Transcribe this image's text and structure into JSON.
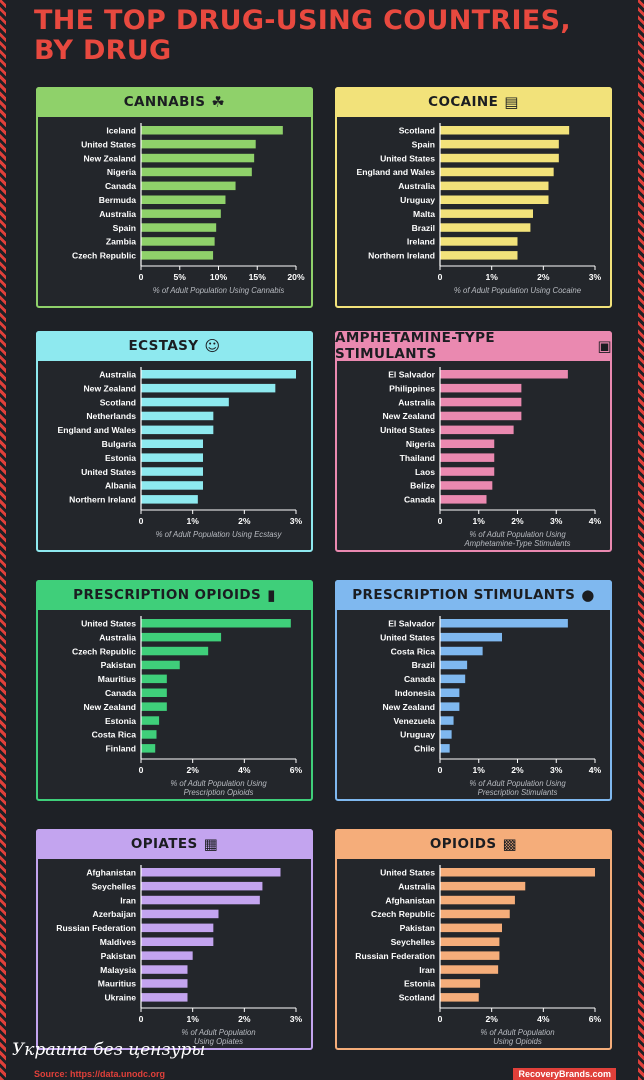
{
  "title_line1": "THE TOP DRUG-USING COUNTRIES,",
  "title_line2": "BY DRUG",
  "watermark": "Украина без цензуры",
  "source": "Source: https://data.unodc.org",
  "brand": "RecoveryBrands.com",
  "chart_data": [
    {
      "type": "bar",
      "title": "CANNABIS",
      "icon": "leaf-icon",
      "color": "#8fd16a",
      "categories": [
        "Iceland",
        "United States",
        "New Zealand",
        "Nigeria",
        "Canada",
        "Bermuda",
        "Australia",
        "Spain",
        "Zambia",
        "Czech Republic"
      ],
      "values": [
        18.3,
        14.8,
        14.6,
        14.3,
        12.2,
        10.9,
        10.3,
        9.7,
        9.5,
        9.3
      ],
      "xticks": [
        "0",
        "5%",
        "10%",
        "15%",
        "20%"
      ],
      "xlim": [
        0,
        20
      ],
      "xlabel": [
        "% of Adult Population Using Cannabis"
      ]
    },
    {
      "type": "bar",
      "title": "COCAINE",
      "icon": "cocaine-icon",
      "color": "#f2e27a",
      "categories": [
        "Scotland",
        "Spain",
        "United States",
        "England and Wales",
        "Australia",
        "Uruguay",
        "Malta",
        "Brazil",
        "Ireland",
        "Northern Ireland"
      ],
      "values": [
        2.5,
        2.3,
        2.3,
        2.2,
        2.1,
        2.1,
        1.8,
        1.75,
        1.5,
        1.5
      ],
      "xticks": [
        "0",
        "1%",
        "2%",
        "3%"
      ],
      "xlim": [
        0,
        3
      ],
      "xlabel": [
        "% of Adult Population Using Cocaine"
      ]
    },
    {
      "type": "bar",
      "title": "ECSTASY",
      "icon": "smiley-icon",
      "color": "#8ee9ef",
      "categories": [
        "Australia",
        "New Zealand",
        "Scotland",
        "Netherlands",
        "England and Wales",
        "Bulgaria",
        "Estonia",
        "United States",
        "Albania",
        "Northern Ireland"
      ],
      "values": [
        3.0,
        2.6,
        1.7,
        1.4,
        1.4,
        1.2,
        1.2,
        1.2,
        1.2,
        1.1
      ],
      "xticks": [
        "0",
        "1%",
        "2%",
        "3%"
      ],
      "xlim": [
        0,
        3
      ],
      "xlabel": [
        "% of Adult Population Using Ecstasy"
      ]
    },
    {
      "type": "bar",
      "title": "AMPHETAMINE-TYPE STIMULANTS",
      "icon": "amphetamine-icon",
      "color": "#ea89b0",
      "categories": [
        "El Salvador",
        "Philippines",
        "Australia",
        "New Zealand",
        "United States",
        "Nigeria",
        "Thailand",
        "Laos",
        "Belize",
        "Canada"
      ],
      "values": [
        3.3,
        2.1,
        2.1,
        2.1,
        1.9,
        1.4,
        1.4,
        1.4,
        1.35,
        1.2
      ],
      "xticks": [
        "0",
        "1%",
        "2%",
        "3%",
        "4%"
      ],
      "xlim": [
        0,
        4
      ],
      "xlabel": [
        "% of Adult Population Using",
        "Amphetamine-Type Stimulants"
      ]
    },
    {
      "type": "bar",
      "title": "PRESCRIPTION OPIOIDS",
      "icon": "pill-bottle-icon",
      "color": "#3fcf7a",
      "categories": [
        "United States",
        "Australia",
        "Czech Republic",
        "Pakistan",
        "Mauritius",
        "Canada",
        "New Zealand",
        "Estonia",
        "Costa Rica",
        "Finland"
      ],
      "values": [
        5.8,
        3.1,
        2.6,
        1.5,
        1.0,
        1.0,
        1.0,
        0.7,
        0.6,
        0.55
      ],
      "xticks": [
        "0",
        "2%",
        "4%",
        "6%"
      ],
      "xlim": [
        0,
        6
      ],
      "xlabel": [
        "% of Adult Population Using",
        "Prescription Opioids"
      ]
    },
    {
      "type": "bar",
      "title": "PRESCRIPTION STIMULANTS",
      "icon": "pills-icon",
      "color": "#7fb8ef",
      "categories": [
        "El Salvador",
        "United States",
        "Costa Rica",
        "Brazil",
        "Canada",
        "Indonesia",
        "New Zealand",
        "Venezuela",
        "Uruguay",
        "Chile"
      ],
      "values": [
        3.3,
        1.6,
        1.1,
        0.7,
        0.65,
        0.5,
        0.5,
        0.35,
        0.3,
        0.25
      ],
      "xticks": [
        "0",
        "1%",
        "2%",
        "3%",
        "4%"
      ],
      "xlim": [
        0,
        4
      ],
      "xlabel": [
        "% of Adult Population Using",
        "Prescription Stimulants"
      ]
    },
    {
      "type": "bar",
      "title": "OPIATES",
      "icon": "opiates-icon",
      "color": "#c3a4ef",
      "categories": [
        "Afghanistan",
        "Seychelles",
        "Iran",
        "Azerbaijan",
        "Russian Federation",
        "Maldives",
        "Pakistan",
        "Malaysia",
        "Mauritius",
        "Ukraine"
      ],
      "values": [
        2.7,
        2.35,
        2.3,
        1.5,
        1.4,
        1.4,
        1.0,
        0.9,
        0.9,
        0.9
      ],
      "xticks": [
        "0",
        "1%",
        "2%",
        "3%"
      ],
      "xlim": [
        0,
        3
      ],
      "xlabel": [
        "% of Adult Population",
        "Using Opiates"
      ]
    },
    {
      "type": "bar",
      "title": "OPIOIDS",
      "icon": "opioids-icon",
      "color": "#f5ad7a",
      "categories": [
        "United States",
        "Australia",
        "Afghanistan",
        "Czech Republic",
        "Pakistan",
        "Seychelles",
        "Russian Federation",
        "Iran",
        "Estonia",
        "Scotland"
      ],
      "values": [
        6.0,
        3.3,
        2.9,
        2.7,
        2.4,
        2.3,
        2.3,
        2.25,
        1.55,
        1.5
      ],
      "xticks": [
        "0",
        "2%",
        "4%",
        "6%"
      ],
      "xlim": [
        0,
        6
      ],
      "xlabel": [
        "% of Adult Population",
        "Using Opioids"
      ]
    }
  ]
}
